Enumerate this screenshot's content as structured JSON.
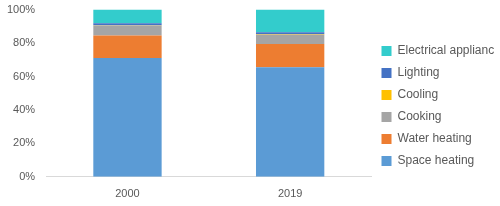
{
  "chart_data": {
    "type": "bar",
    "stacked": true,
    "categories": [
      "2000",
      "2019"
    ],
    "series": [
      {
        "name": "Space heating",
        "color": "#5b9bd5",
        "values": [
          71,
          65.5
        ]
      },
      {
        "name": "Water heating",
        "color": "#ed7d31",
        "values": [
          13.5,
          14
        ]
      },
      {
        "name": "Cooking",
        "color": "#a5a5a5",
        "values": [
          6,
          5.5
        ]
      },
      {
        "name": "Cooling",
        "color": "#ffc000",
        "values": [
          0.1,
          0.2
        ]
      },
      {
        "name": "Lighting",
        "color": "#4472c4",
        "values": [
          1.2,
          1.3
        ]
      },
      {
        "name": "Electrical appliances",
        "color": "#33cccc",
        "values": [
          8.2,
          13.5
        ]
      }
    ],
    "ylim": [
      0,
      100
    ],
    "yticks": [
      {
        "value": 0,
        "label": "0%"
      },
      {
        "value": 20,
        "label": "20%"
      },
      {
        "value": 40,
        "label": "40%"
      },
      {
        "value": 60,
        "label": "60%"
      },
      {
        "value": 80,
        "label": "80%"
      },
      {
        "value": 100,
        "label": "100%"
      }
    ],
    "grid": false,
    "legend": "right"
  }
}
